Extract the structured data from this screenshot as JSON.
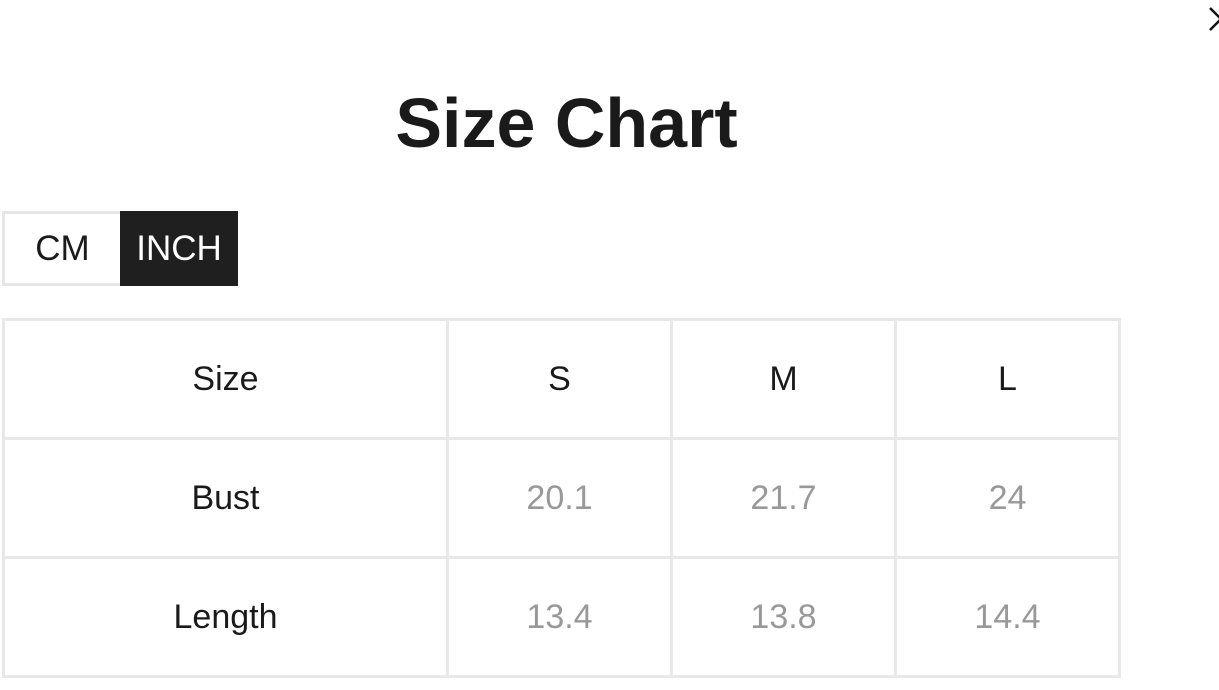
{
  "title": "Size Chart",
  "close_icon": "close-icon",
  "units": {
    "options": [
      "CM",
      "INCH"
    ],
    "selected": "INCH"
  },
  "table": {
    "header": [
      "Size",
      "S",
      "M",
      "L"
    ],
    "rows": [
      [
        "Bust",
        "20.1",
        "21.7",
        "24"
      ],
      [
        "Length",
        "13.4",
        "13.8",
        "14.4"
      ]
    ]
  },
  "colors": {
    "selected_bg": "#1f1f1f",
    "value_text": "#999999",
    "border": "#e8e8e8"
  }
}
